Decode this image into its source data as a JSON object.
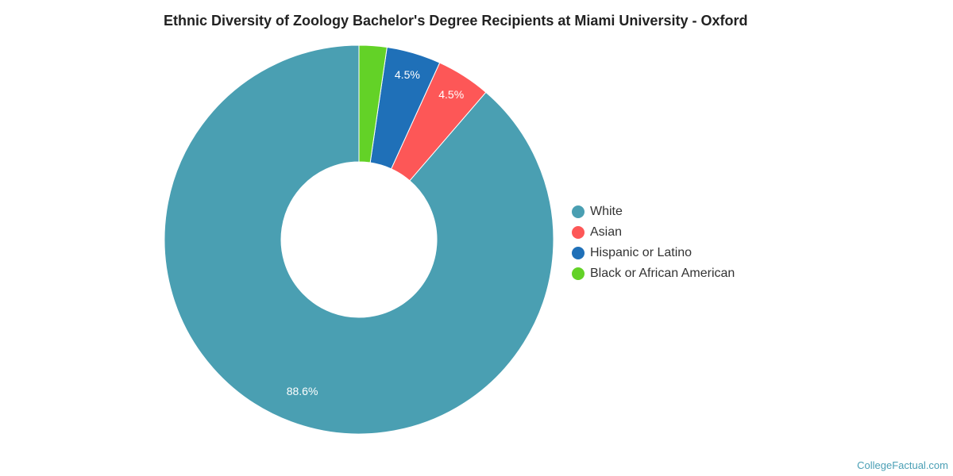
{
  "chart_data": {
    "type": "pie",
    "title": "Ethnic Diversity of Zoology Bachelor's Degree Recipients at Miami University - Oxford",
    "series": [
      {
        "name": "White",
        "value": 88.6,
        "label": "88.6%",
        "color": "#4a9fb2"
      },
      {
        "name": "Asian",
        "value": 4.5,
        "label": "4.5%",
        "color": "#fd5757"
      },
      {
        "name": "Hispanic or Latino",
        "value": 4.5,
        "label": "4.5%",
        "color": "#1f70b8"
      },
      {
        "name": "Black or African American",
        "value": 2.3,
        "label": "",
        "color": "#63d227"
      }
    ],
    "legend_position": "right"
  },
  "source": "CollegeFactual.com"
}
